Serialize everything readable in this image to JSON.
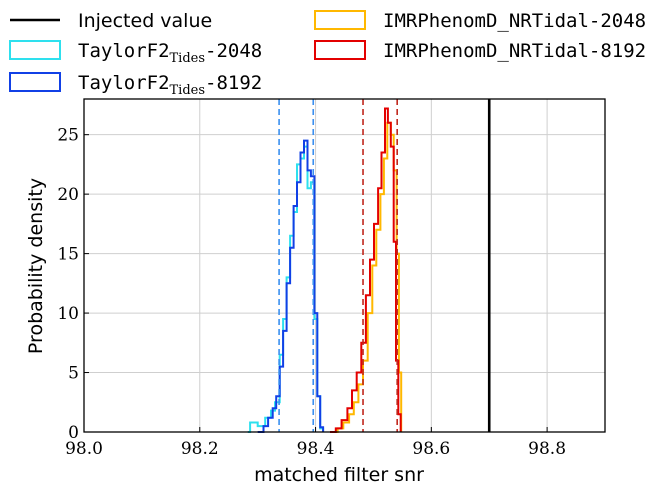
{
  "chart_data": {
    "type": "line",
    "title": "",
    "xlabel": "matched filter snr",
    "ylabel": "Probability density",
    "xlim": [
      98.0,
      98.9
    ],
    "ylim": [
      0,
      28
    ],
    "x_ticks": [
      98.0,
      98.2,
      98.4,
      98.6,
      98.8
    ],
    "x_tick_labels": [
      "98.0",
      "98.2",
      "98.4",
      "98.6",
      "98.8"
    ],
    "y_ticks": [
      0,
      5,
      10,
      15,
      20,
      25
    ],
    "y_tick_labels": [
      "0",
      "5",
      "10",
      "15",
      "20",
      "25"
    ],
    "grid": true,
    "legend_placement": "above the plot, two columns",
    "legend": [
      {
        "kind": "line",
        "label": "Injected value",
        "color": "#000000"
      },
      {
        "kind": "box",
        "label": "TaylorF2",
        "sub": "Tides",
        "suffix": "-2048",
        "color": "#2ee0ee"
      },
      {
        "kind": "box",
        "label": "TaylorF2",
        "sub": "Tides",
        "suffix": "-8192",
        "color": "#1140e6"
      },
      {
        "kind": "box",
        "label": "IMRPhenomD_NRTidal-2048",
        "sub": "",
        "suffix": "",
        "color": "#ffb800"
      },
      {
        "kind": "box",
        "label": "IMRPhenomD_NRTidal-8192",
        "sub": "",
        "suffix": "",
        "color": "#e30000"
      }
    ],
    "injected_value": 98.7,
    "dashed_lines": [
      {
        "x": 98.337,
        "color": "#3a8ff0"
      },
      {
        "x": 98.396,
        "color": "#3a8ff0"
      },
      {
        "x": 98.482,
        "color": "#c0271c"
      },
      {
        "x": 98.541,
        "color": "#c0271c"
      }
    ],
    "series": [
      {
        "color": "#2ee0ee",
        "x": [
          98.283,
          98.287,
          98.3,
          98.313,
          98.323,
          98.33,
          98.338,
          98.344,
          98.35,
          98.356,
          98.362,
          98.368,
          98.374,
          98.38,
          98.386,
          98.392,
          98.398,
          98.403,
          98.408,
          98.413
        ],
        "y": [
          0,
          0.8,
          0.5,
          1.2,
          1.8,
          2.5,
          6.5,
          9.5,
          13,
          16.5,
          18.5,
          22.5,
          23,
          24,
          20.5,
          21,
          9.5,
          3,
          0.3,
          0
        ]
      },
      {
        "color": "#1140e6",
        "x": [
          98.3,
          98.31,
          98.318,
          98.326,
          98.332,
          98.338,
          98.344,
          98.35,
          98.356,
          98.362,
          98.368,
          98.374,
          98.38,
          98.386,
          98.392,
          98.398,
          98.403,
          98.408,
          98.413
        ],
        "y": [
          0,
          0.5,
          1.2,
          2,
          3,
          5.5,
          8.5,
          12.5,
          15.5,
          19,
          21,
          23.5,
          24.5,
          22,
          21.5,
          10,
          3,
          0.4,
          0
        ]
      },
      {
        "color": "#ffb800",
        "x": [
          98.428,
          98.438,
          98.448,
          98.458,
          98.466,
          98.474,
          98.482,
          98.49,
          98.498,
          98.505,
          98.512,
          98.518,
          98.524,
          98.53,
          98.535,
          98.54,
          98.544,
          98.548
        ],
        "y": [
          0,
          0.3,
          0.8,
          1.5,
          2.5,
          4,
          6,
          10,
          14,
          17,
          20,
          23,
          26,
          25,
          22,
          15,
          5,
          0
        ]
      },
      {
        "color": "#e30000",
        "x": [
          98.425,
          98.435,
          98.445,
          98.455,
          98.463,
          98.471,
          98.479,
          98.487,
          98.494,
          98.501,
          98.508,
          98.514,
          98.52,
          98.525,
          98.53,
          98.535,
          98.539,
          98.543,
          98.547
        ],
        "y": [
          0,
          0.3,
          1,
          2,
          3.5,
          5,
          7.5,
          11.5,
          14.5,
          17.5,
          20.5,
          23.5,
          27.2,
          26,
          24,
          16,
          6,
          1.5,
          0
        ]
      }
    ]
  }
}
